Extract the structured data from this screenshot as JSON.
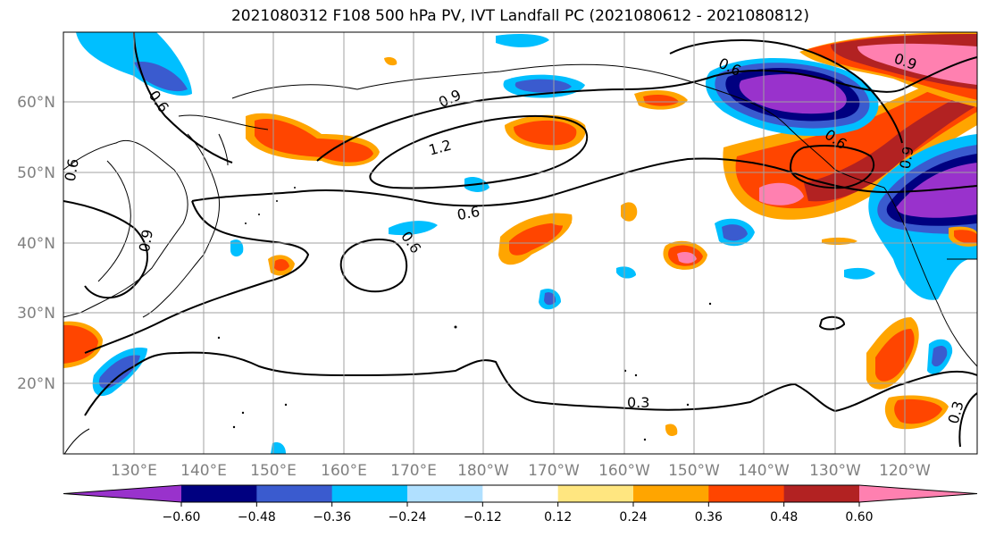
{
  "title": "2021080312 F108 500 hPa PV, IVT Landfall PC (2021080612 - 2021080812)",
  "lon_ticks": [
    "130°E",
    "140°E",
    "150°E",
    "160°E",
    "170°E",
    "180°W",
    "170°W",
    "160°W",
    "150°W",
    "140°W",
    "130°W",
    "120°W"
  ],
  "lat_ticks": [
    "60°N",
    "50°N",
    "40°N",
    "30°N",
    "20°N"
  ],
  "colorbar": {
    "levels": [
      "−0.60",
      "−0.48",
      "−0.36",
      "−0.24",
      "−0.12",
      "0.12",
      "0.24",
      "0.36",
      "0.48",
      "0.60"
    ],
    "colors": [
      "#9932cc",
      "#000080",
      "#3a5bcf",
      "#00bfff",
      "#b0e0ff",
      "#ffffff",
      "#ffe680",
      "#ffa500",
      "#ff4500",
      "#b22222",
      "#ff80b0"
    ]
  },
  "contour_labels": [
    "0.6",
    "0.9",
    "1.2",
    "0.6",
    "0.6",
    "0.9",
    "0.3",
    "0.6",
    "0.9",
    "0.6",
    "0.9",
    "0.6",
    "0.3"
  ]
}
